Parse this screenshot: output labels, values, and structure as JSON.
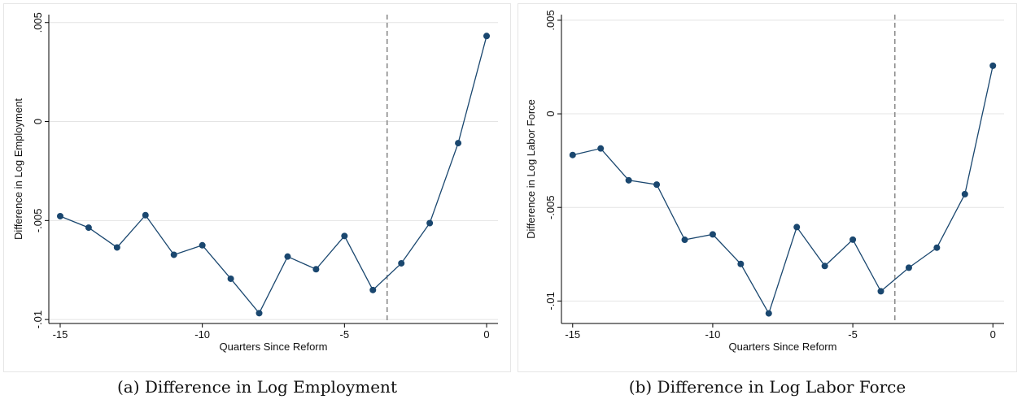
{
  "chart_data": [
    {
      "type": "line",
      "xlabel": "Quarters Since Reform",
      "ylabel": "Difference in Log Employment",
      "caption": "(a) Difference in Log Employment",
      "xlim": [
        -15.4,
        0.4
      ],
      "ylim": [
        -0.0102,
        0.0054
      ],
      "xticks": [
        -15,
        -10,
        -5,
        0
      ],
      "xtick_labels": [
        "-15",
        "-10",
        "-5",
        "0"
      ],
      "yticks": [
        -0.01,
        -0.005,
        0,
        0.005
      ],
      "ytick_labels": [
        "-.01",
        "-.005",
        "0",
        ".005"
      ],
      "grid": true,
      "vline_x": -3.5,
      "series": [
        {
          "x": [
            -15,
            -14,
            -13,
            -12,
            -11,
            -10,
            -9,
            -8,
            -7,
            -6,
            -5,
            -4,
            -3,
            -2,
            -1,
            0
          ],
          "y": [
            -0.00478,
            -0.00536,
            -0.00636,
            -0.00473,
            -0.00673,
            -0.00625,
            -0.00794,
            -0.00968,
            -0.00682,
            -0.00746,
            -0.00578,
            -0.00851,
            -0.00716,
            -0.00513,
            -0.00109,
            0.00432
          ]
        }
      ],
      "colors": {
        "line": "#1a476f",
        "marker": "#1a476f",
        "vline": "#8c8c8c",
        "grid": "#e4e4e4"
      }
    },
    {
      "type": "line",
      "xlabel": "Quarters Since Reform",
      "ylabel": "Difference in Log Labor Force",
      "caption": "(b) Difference in Log Labor Force",
      "xlim": [
        -15.4,
        0.4
      ],
      "ylim": [
        -0.0112,
        0.0053
      ],
      "xticks": [
        -15,
        -10,
        -5,
        0
      ],
      "xtick_labels": [
        "-15",
        "-10",
        "-5",
        "0"
      ],
      "yticks": [
        -0.01,
        -0.005,
        0,
        0.005
      ],
      "ytick_labels": [
        "-.01",
        "-.005",
        "0",
        ".005"
      ],
      "grid": true,
      "vline_x": -3.5,
      "series": [
        {
          "x": [
            -15,
            -14,
            -13,
            -12,
            -11,
            -10,
            -9,
            -8,
            -7,
            -6,
            -5,
            -4,
            -3,
            -2,
            -1,
            0
          ],
          "y": [
            -0.0022,
            -0.00185,
            -0.00355,
            -0.00378,
            -0.00673,
            -0.00644,
            -0.00802,
            -0.01066,
            -0.00605,
            -0.00813,
            -0.00672,
            -0.00948,
            -0.00822,
            -0.00715,
            -0.00429,
            0.00257
          ]
        }
      ],
      "colors": {
        "line": "#1a476f",
        "marker": "#1a476f",
        "vline": "#8c8c8c",
        "grid": "#e4e4e4"
      }
    }
  ]
}
